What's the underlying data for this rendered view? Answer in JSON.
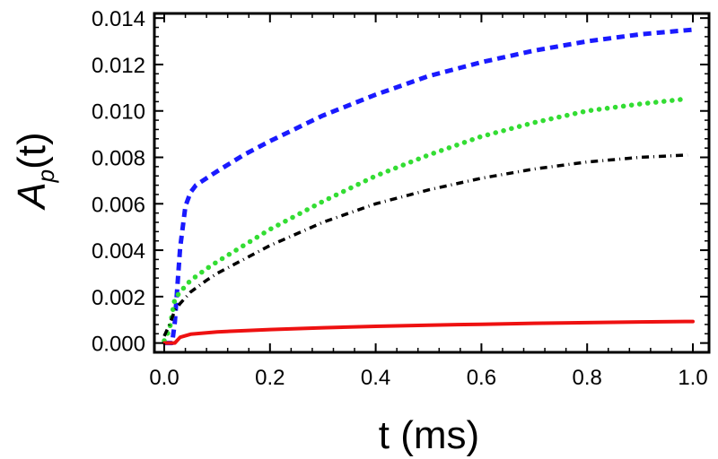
{
  "chart_data": {
    "type": "line",
    "title": "",
    "xlabel": "t (ms)",
    "ylabel": {
      "base": "A",
      "sub": "p",
      "rest": "(t)"
    },
    "xlim": [
      0,
      1.0
    ],
    "ylim": [
      -0.0004,
      0.0142
    ],
    "xticks": [
      0.0,
      0.2,
      0.4,
      0.6,
      0.8,
      1.0
    ],
    "xtick_labels": [
      "0.0",
      "0.2",
      "0.4",
      "0.6",
      "0.8",
      "1.0"
    ],
    "yticks": [
      0.0,
      0.002,
      0.004,
      0.006,
      0.008,
      0.01,
      0.012,
      0.014
    ],
    "ytick_labels": [
      "0.000",
      "0.002",
      "0.004",
      "0.006",
      "0.008",
      "0.010",
      "0.012",
      "0.014"
    ],
    "grid": false,
    "legend": "none",
    "series": [
      {
        "name": "blue dashed",
        "color": "#1a1aff",
        "style": "dashed",
        "x": [
          0.0,
          0.015,
          0.02,
          0.03,
          0.04,
          0.05,
          0.06,
          0.08,
          0.1,
          0.15,
          0.2,
          0.3,
          0.4,
          0.5,
          0.6,
          0.7,
          0.8,
          0.9,
          1.0
        ],
        "y": [
          0.0,
          0.0,
          0.0009,
          0.0041,
          0.0059,
          0.0065,
          0.0068,
          0.0071,
          0.0074,
          0.0081,
          0.0087,
          0.0098,
          0.0107,
          0.0115,
          0.0121,
          0.0126,
          0.013,
          0.0133,
          0.0135
        ]
      },
      {
        "name": "green dotted",
        "color": "#33dd33",
        "style": "dotted",
        "x": [
          0.0,
          0.01,
          0.02,
          0.03,
          0.05,
          0.08,
          0.1,
          0.15,
          0.2,
          0.3,
          0.4,
          0.5,
          0.6,
          0.7,
          0.8,
          0.9,
          0.98
        ],
        "y": [
          0.0001,
          0.0006,
          0.0019,
          0.0022,
          0.0027,
          0.0032,
          0.0035,
          0.0042,
          0.0049,
          0.0061,
          0.0072,
          0.0081,
          0.0089,
          0.0095,
          0.01,
          0.0103,
          0.0105
        ]
      },
      {
        "name": "black dash-dot",
        "color": "#000000",
        "style": "dashdot",
        "x": [
          0.0,
          0.01,
          0.02,
          0.03,
          0.05,
          0.08,
          0.1,
          0.15,
          0.2,
          0.3,
          0.4,
          0.5,
          0.6,
          0.7,
          0.8,
          0.9,
          0.99
        ],
        "y": [
          0.0003,
          0.0008,
          0.0014,
          0.0017,
          0.0022,
          0.0027,
          0.003,
          0.0036,
          0.0042,
          0.0052,
          0.006,
          0.0066,
          0.0071,
          0.0075,
          0.0078,
          0.008,
          0.0081
        ]
      },
      {
        "name": "red solid",
        "color": "#ee1111",
        "style": "solid",
        "x": [
          0.0,
          0.02,
          0.03,
          0.05,
          0.1,
          0.2,
          0.3,
          0.4,
          0.5,
          0.6,
          0.7,
          0.8,
          0.9,
          1.0
        ],
        "y": [
          0.0,
          0.0,
          0.00025,
          0.00038,
          0.00048,
          0.00058,
          0.00066,
          0.00072,
          0.00077,
          0.00081,
          0.00085,
          0.00088,
          0.00091,
          0.00093
        ]
      }
    ]
  }
}
